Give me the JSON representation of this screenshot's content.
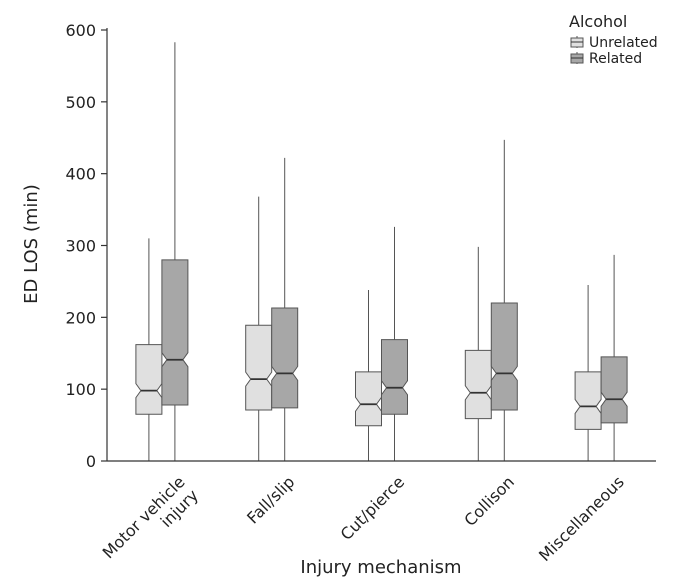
{
  "chart_data": {
    "type": "boxplot",
    "title": "",
    "xlabel": "Injury mechanism",
    "ylabel": "ED LOS (min)",
    "ylim": [
      0,
      600
    ],
    "yticks": [
      0,
      100,
      200,
      300,
      400,
      500,
      600
    ],
    "grid": false,
    "notched": true,
    "categories": [
      [
        "Motor vehicle",
        "injury"
      ],
      [
        "Fall/slip"
      ],
      [
        "Cut/pierce"
      ],
      [
        "Collison"
      ],
      [
        "Miscellaneous"
      ]
    ],
    "legend": {
      "title": "Alcohol",
      "position": "top-right"
    },
    "series": [
      {
        "name": "Unrelated",
        "color": "#e0e0e0",
        "boxes": [
          {
            "min": 0,
            "q1": 65,
            "median": 98,
            "q3": 162,
            "max": 310
          },
          {
            "min": 0,
            "q1": 71,
            "median": 114,
            "q3": 189,
            "max": 368
          },
          {
            "min": 0,
            "q1": 49,
            "median": 79,
            "q3": 124,
            "max": 238
          },
          {
            "min": 0,
            "q1": 59,
            "median": 95,
            "q3": 154,
            "max": 298
          },
          {
            "min": 0,
            "q1": 44,
            "median": 76,
            "q3": 124,
            "max": 245
          }
        ]
      },
      {
        "name": "Related",
        "color": "#a7a7a7",
        "boxes": [
          {
            "min": 0,
            "q1": 78,
            "median": 141,
            "q3": 280,
            "max": 583
          },
          {
            "min": 0,
            "q1": 74,
            "median": 122,
            "q3": 213,
            "max": 422
          },
          {
            "min": 0,
            "q1": 65,
            "median": 102,
            "q3": 169,
            "max": 326
          },
          {
            "min": 0,
            "q1": 71,
            "median": 122,
            "q3": 220,
            "max": 447
          },
          {
            "min": 0,
            "q1": 53,
            "median": 86,
            "q3": 145,
            "max": 287
          }
        ]
      }
    ]
  }
}
